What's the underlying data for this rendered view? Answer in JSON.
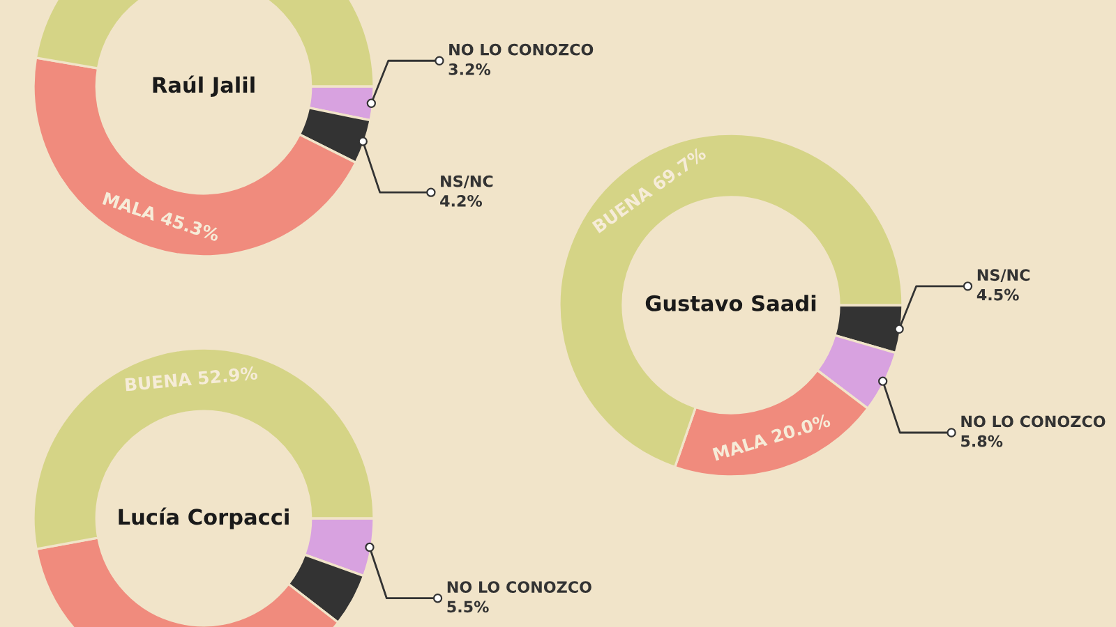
{
  "chart_data": [
    {
      "type": "donut",
      "title": "Raúl Jalil",
      "categories": [
        null,
        "MALA",
        "NO LO CONOZCO",
        "NS/NC"
      ],
      "values": [
        47.3,
        45.3,
        3.2,
        4.2
      ],
      "colors": [
        "#d5d486",
        "#f08b7d",
        "#d8a2e0",
        "#333333"
      ],
      "value_labels": [
        null,
        "45.3%",
        "3.2%",
        "4.2%"
      ]
    },
    {
      "type": "donut",
      "title": "Gustavo Saadi",
      "categories": [
        "BUENA",
        "MALA",
        "NO LO CONOZCO",
        "NS/NC"
      ],
      "values": [
        69.7,
        20.0,
        5.8,
        4.5
      ],
      "colors": [
        "#d5d486",
        "#f08b7d",
        "#d8a2e0",
        "#333333"
      ],
      "value_labels": [
        "69.7%",
        "20.0%",
        "5.8%",
        "4.5%"
      ]
    },
    {
      "type": "donut",
      "title": "Lucía Corpacci",
      "categories": [
        "BUENA",
        null,
        "NO LO CONOZCO",
        null
      ],
      "values": [
        52.9,
        36.6,
        5.5,
        5.0
      ],
      "colors": [
        "#d5d486",
        "#f08b7d",
        "#d8a2e0",
        "#333333"
      ],
      "value_labels": [
        "52.9%",
        null,
        "5.5%",
        null
      ]
    }
  ]
}
